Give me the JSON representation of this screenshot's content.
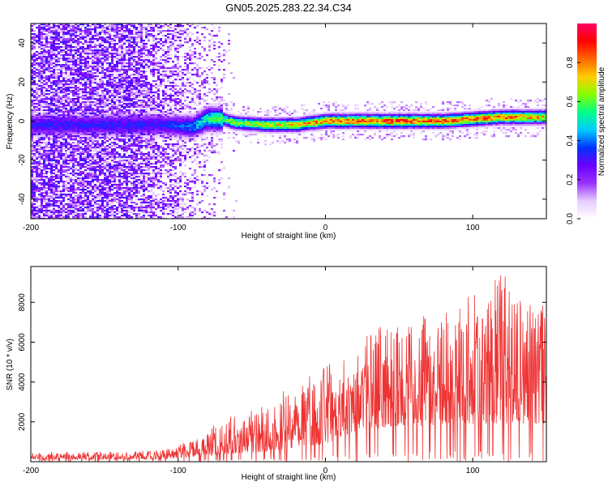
{
  "figure_title": "GN05.2025.283.22.34.C34",
  "chart_data": [
    {
      "type": "heatmap",
      "name": "spectrogram",
      "xlabel": "Height of straight line (km)",
      "ylabel": "Frequency (Hz)",
      "xlim": [
        -200,
        150
      ],
      "ylim": [
        -50,
        50
      ],
      "xticks": [
        -200,
        -100,
        0,
        100
      ],
      "xtick_labels": [
        "-200",
        "-100",
        "0",
        "100"
      ],
      "yticks": [
        -40,
        -20,
        0,
        20,
        40
      ],
      "ytick_labels": [
        "-40",
        "-20",
        "0",
        "20",
        "40"
      ],
      "colorbar": {
        "label": "Normalized spectral amplitude",
        "range": [
          0.0,
          1.0
        ],
        "ticks": [
          0.0,
          0.2,
          0.4,
          0.6,
          0.8
        ],
        "tick_labels": [
          "0.0",
          "0.2",
          "0.4",
          "0.6",
          "0.8"
        ],
        "colormap": [
          "#ffffff",
          "#e6ccff",
          "#9933ff",
          "#6a00ff",
          "#0033ff",
          "#00ccff",
          "#00ff88",
          "#88ff00",
          "#ffcc00",
          "#ff6600",
          "#ff0000",
          "#ff0066"
        ]
      },
      "ridge": {
        "x": [
          -110,
          -90,
          -80,
          -70,
          -60,
          -40,
          -20,
          0,
          20,
          40,
          60,
          80,
          100,
          120,
          140,
          150
        ],
        "freq": [
          -2,
          -3,
          1,
          1,
          -1,
          -2,
          -2,
          0,
          0,
          0,
          0,
          0,
          1,
          2,
          2,
          2
        ],
        "peak_amplitude": [
          0.35,
          0.45,
          0.6,
          0.65,
          0.7,
          0.75,
          0.8,
          0.9,
          0.92,
          0.95,
          0.95,
          0.92,
          0.9,
          0.9,
          0.85,
          0.8
        ]
      },
      "noise_extent_x": [
        -200,
        -70
      ]
    },
    {
      "type": "line",
      "name": "snr",
      "xlabel": "Height of straight line (km)",
      "ylabel": "SNR (10 * v/v)",
      "xlim": [
        -200,
        150
      ],
      "ylim": [
        0,
        9800
      ],
      "xticks": [
        -200,
        -100,
        0,
        100
      ],
      "xtick_labels": [
        "-200",
        "-100",
        "0",
        "100"
      ],
      "yticks": [
        2000,
        4000,
        6000,
        8000
      ],
      "ytick_labels": [
        "2000",
        "4000",
        "6000",
        "8000"
      ],
      "color": "#ee3333",
      "envelope": {
        "x": [
          -200,
          -140,
          -110,
          -100,
          -85,
          -80,
          -70,
          -60,
          -50,
          -40,
          -30,
          -20,
          -10,
          0,
          10,
          20,
          30,
          40,
          50,
          60,
          70,
          80,
          90,
          100,
          110,
          120,
          130,
          140,
          150
        ],
        "floor": [
          100,
          100,
          120,
          200,
          250,
          300,
          350,
          400,
          450,
          500,
          600,
          700,
          800,
          900,
          1200,
          1500,
          1600,
          1700,
          1800,
          1800,
          1800,
          1900,
          1900,
          1900,
          1900,
          1900,
          1900,
          1900,
          1900
        ],
        "peak": [
          500,
          500,
          600,
          900,
          1200,
          1700,
          2100,
          2400,
          2600,
          2900,
          3500,
          4200,
          4600,
          4800,
          5200,
          6200,
          6800,
          7000,
          6800,
          7200,
          7400,
          7600,
          8000,
          8400,
          8800,
          9700,
          8500,
          8000,
          7800
        ]
      }
    }
  ]
}
